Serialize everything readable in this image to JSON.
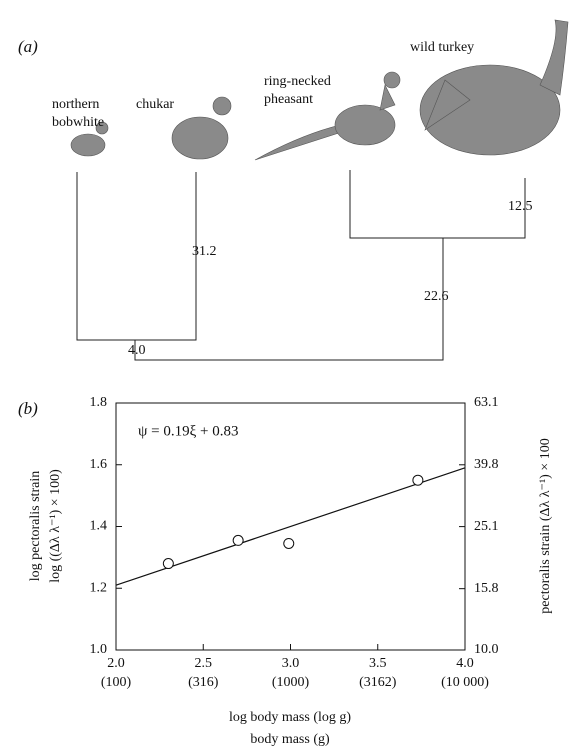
{
  "panel_a": {
    "label": "(a)",
    "species": [
      [
        "northern",
        "bobwhite"
      ],
      [
        "chukar"
      ],
      [
        "ring-necked",
        "pheasant"
      ],
      [
        "wild turkey"
      ]
    ],
    "branch_lengths": [
      "31.2",
      "12.5",
      "22.6",
      "4.0"
    ]
  },
  "chart_data": {
    "type": "scatter",
    "panel_label": "(b)",
    "equation": "ψ = 0.19ξ + 0.83",
    "x_label": [
      "log body mass (log g)",
      "body mass (g)"
    ],
    "y_label": [
      "log pectoralis strain",
      "log ((Δλ λ⁻¹) × 100)"
    ],
    "y2_label": "pectoralis strain (Δλ λ⁻¹) × 100",
    "x": [
      2.3,
      2.7,
      2.99,
      3.73
    ],
    "values": [
      1.28,
      1.355,
      1.345,
      1.55
    ],
    "fit_line": {
      "x": [
        2.0,
        4.0
      ],
      "y": [
        1.21,
        1.59
      ]
    },
    "xlim": [
      2.0,
      4.0
    ],
    "xticks": [
      {
        "value": 2.0,
        "label": "2.0"
      },
      {
        "value": 2.5,
        "label": "2.5"
      },
      {
        "value": 3.0,
        "label": "3.0"
      },
      {
        "value": 3.5,
        "label": "3.5"
      },
      {
        "value": 4.0,
        "label": "4.0"
      }
    ],
    "xticks_secondary": [
      {
        "value": 2.0,
        "label": "(100)"
      },
      {
        "value": 2.5,
        "label": "(316)"
      },
      {
        "value": 3.0,
        "label": "(1000)"
      },
      {
        "value": 3.5,
        "label": "(3162)"
      },
      {
        "value": 4.0,
        "label": "(10 000)"
      }
    ],
    "ylim": [
      1.0,
      1.8
    ],
    "yticks": [
      {
        "value": 1.0,
        "label": "1.0"
      },
      {
        "value": 1.2,
        "label": "1.2"
      },
      {
        "value": 1.4,
        "label": "1.4"
      },
      {
        "value": 1.6,
        "label": "1.6"
      },
      {
        "value": 1.8,
        "label": "1.8"
      }
    ],
    "y2lim": [
      10.0,
      63.1
    ],
    "y2_log": true,
    "y2ticks": [
      {
        "value": 10.0,
        "label": "10.0"
      },
      15.8,
      25.1,
      39.8,
      63.1
    ]
  }
}
